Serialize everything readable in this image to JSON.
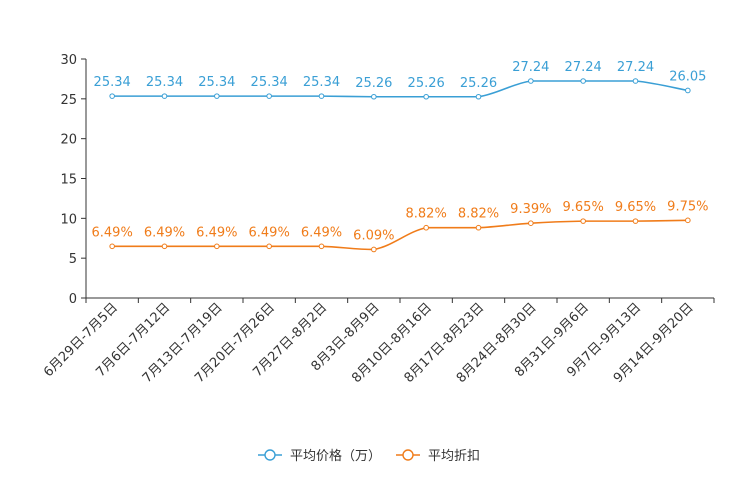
{
  "chart_data": {
    "type": "line",
    "title": "",
    "xlabel": "",
    "ylabel": "",
    "ylim": [
      0,
      30
    ],
    "yticks": [
      0,
      5,
      10,
      15,
      20,
      25,
      30
    ],
    "grid": false,
    "legend_position": "bottom-center",
    "categories": [
      "6月29日-7月5日",
      "7月6日-7月12日",
      "7月13日-7月19日",
      "7月20日-7月26日",
      "7月27日-8月2日",
      "8月3日-8月9日",
      "8月10日-8月16日",
      "8月17日-8月23日",
      "8月24日-8月30日",
      "8月31日-9月6日",
      "9月7日-9月13日",
      "9月14日-9月20日"
    ],
    "series": [
      {
        "name": "平均价格（万）",
        "color": "#3a9fd5",
        "values": [
          25.34,
          25.34,
          25.34,
          25.34,
          25.34,
          25.26,
          25.26,
          25.26,
          27.24,
          27.24,
          27.24,
          26.05
        ],
        "labels": [
          "25.34",
          "25.34",
          "25.34",
          "25.34",
          "25.34",
          "25.26",
          "25.26",
          "25.26",
          "27.24",
          "27.24",
          "27.24",
          "26.05"
        ]
      },
      {
        "name": "平均折扣",
        "color": "#f07c1a",
        "values": [
          6.49,
          6.49,
          6.49,
          6.49,
          6.49,
          6.09,
          8.82,
          8.82,
          9.39,
          9.65,
          9.65,
          9.75
        ],
        "labels": [
          "6.49%",
          "6.49%",
          "6.49%",
          "6.49%",
          "6.49%",
          "6.09%",
          "8.82%",
          "8.82%",
          "9.39%",
          "9.65%",
          "9.65%",
          "9.75%"
        ]
      }
    ]
  }
}
